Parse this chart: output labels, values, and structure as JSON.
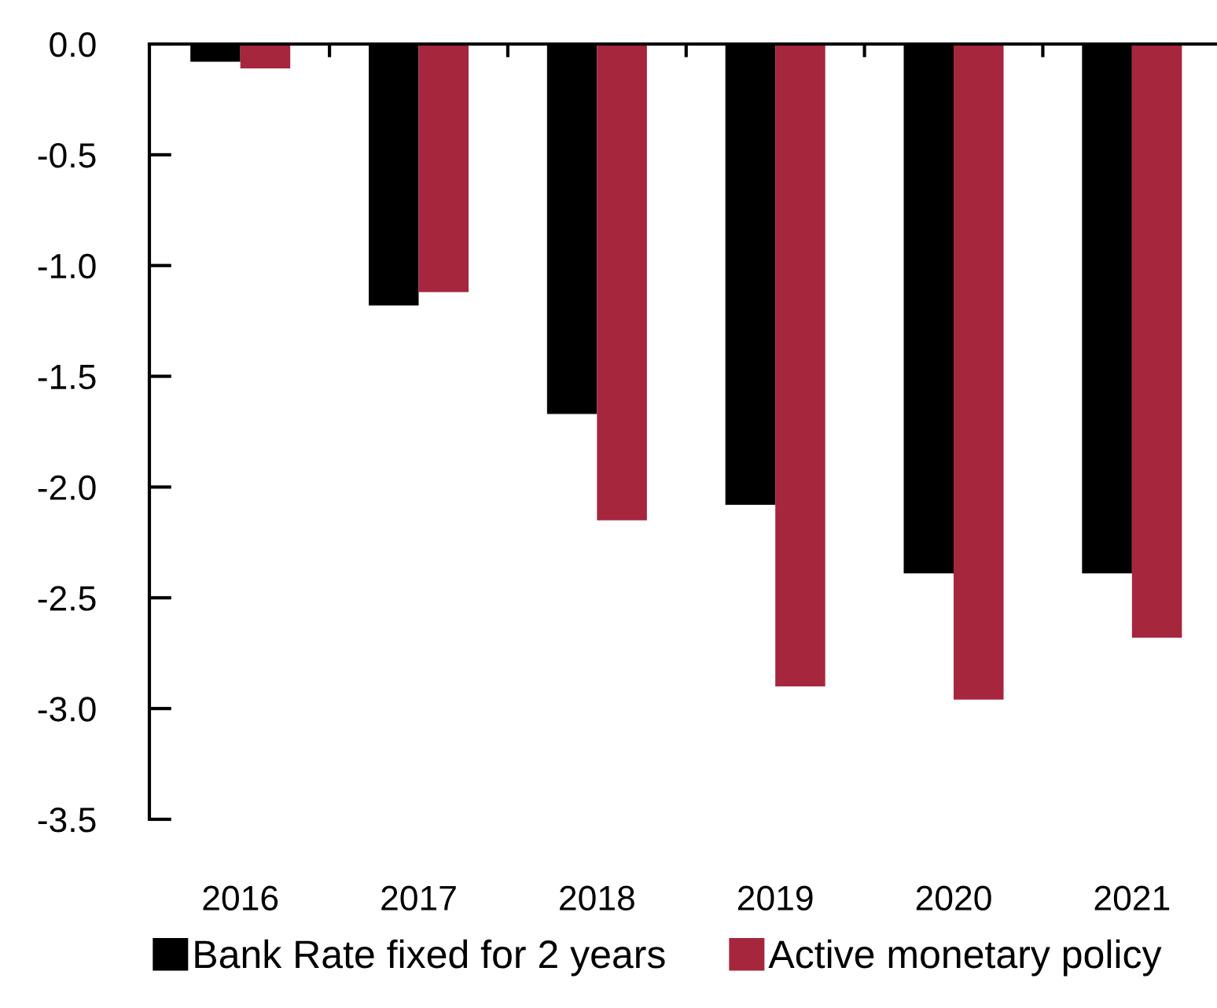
{
  "chart_data": {
    "type": "bar",
    "categories": [
      "2016",
      "2017",
      "2018",
      "2019",
      "2020",
      "2021"
    ],
    "series": [
      {
        "name": "Bank Rate fixed for 2 years",
        "color": "#000000",
        "values": [
          -0.08,
          -1.18,
          -1.67,
          -2.08,
          -2.39,
          -2.39
        ]
      },
      {
        "name": "Active monetary policy",
        "color": "#a6263d",
        "values": [
          -0.11,
          -1.12,
          -2.15,
          -2.9,
          -2.96,
          -2.68
        ]
      }
    ],
    "ylim": [
      -3.5,
      0
    ],
    "yticks": [
      {
        "value": 0,
        "label": "0.0"
      },
      {
        "value": -0.5,
        "label": "-0.5"
      },
      {
        "value": -1,
        "label": "-1.0"
      },
      {
        "value": -1.5,
        "label": "-1.5"
      },
      {
        "value": -2,
        "label": "-2.0"
      },
      {
        "value": -2.5,
        "label": "-2.5"
      },
      {
        "value": -3,
        "label": "-3.0"
      },
      {
        "value": -3.5,
        "label": "-3.5"
      }
    ],
    "grid": false,
    "legend": "bottom"
  }
}
